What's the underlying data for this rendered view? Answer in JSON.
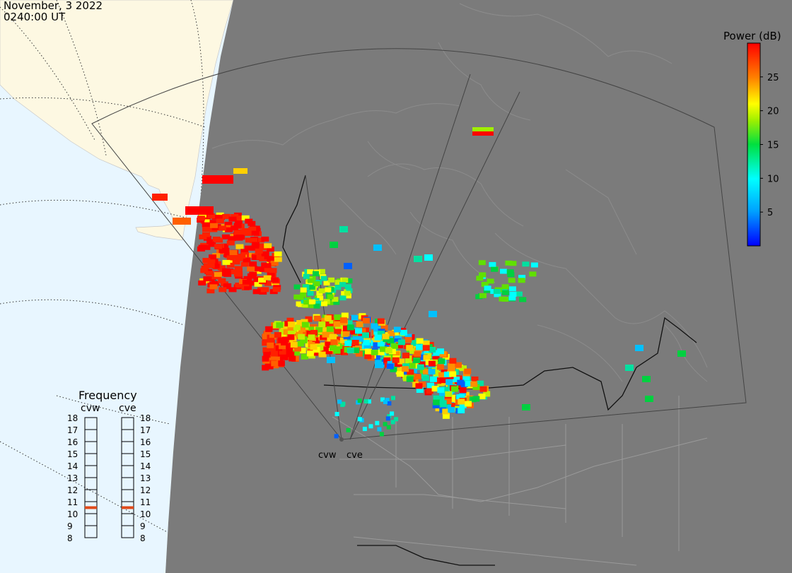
{
  "header": {
    "date": "November, 3 2022",
    "time": "0240:00 UT"
  },
  "colorbar": {
    "title": "Power (dB)",
    "ticks": [
      5,
      10,
      15,
      20,
      25
    ],
    "min": 0,
    "max": 30
  },
  "frequency": {
    "title": "Frequency",
    "labels": [
      "18",
      "17",
      "16",
      "15",
      "14",
      "13",
      "12",
      "11",
      "10",
      "9",
      "8"
    ],
    "radars": [
      {
        "name": "cvw",
        "selected_mhz": 10.5
      },
      {
        "name": "cve",
        "selected_mhz": 10.5
      }
    ]
  },
  "stations": [
    {
      "name": "cvw"
    },
    {
      "name": "cve"
    }
  ],
  "colors": {
    "ocean": "#e8f6ff",
    "land": "#fdf8e2",
    "night": "#7b7b7b",
    "selection": "#e04a1a"
  }
}
